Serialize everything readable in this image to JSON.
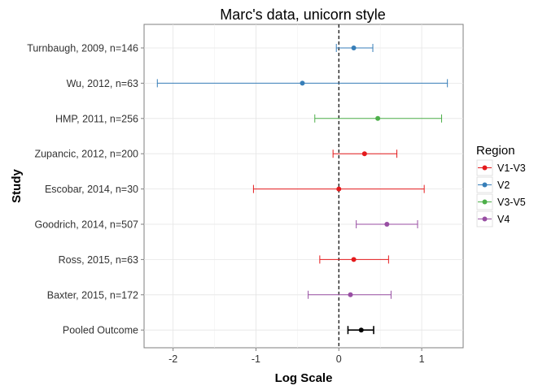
{
  "chart_data": {
    "type": "forest",
    "title": "Marc's data, unicorn style",
    "xlabel": "Log Scale",
    "ylabel": "Study",
    "xlim": [
      -2.35,
      1.5
    ],
    "x_ticks": [
      -2,
      -1,
      0,
      1
    ],
    "x_tick_labels": [
      "-2",
      "-1",
      "0",
      "1"
    ],
    "reference_line": 0,
    "grid": true,
    "legend": {
      "title": "Region",
      "position": "right",
      "entries": [
        {
          "label": "V1-V3",
          "color": "#e41a1c"
        },
        {
          "label": "V2",
          "color": "#377eb8"
        },
        {
          "label": "V3-V5",
          "color": "#4daf4a"
        },
        {
          "label": "V4",
          "color": "#984ea3"
        }
      ]
    },
    "studies": [
      {
        "label": "Turnbaugh, 2009, n=146",
        "estimate": 0.18,
        "lower": -0.03,
        "upper": 0.41,
        "region": "V2",
        "color": "#377eb8"
      },
      {
        "label": "Wu, 2012, n=63",
        "estimate": -0.44,
        "lower": -2.19,
        "upper": 1.31,
        "region": "V2",
        "color": "#377eb8"
      },
      {
        "label": "HMP, 2011, n=256",
        "estimate": 0.47,
        "lower": -0.29,
        "upper": 1.24,
        "region": "V3-V5",
        "color": "#4daf4a"
      },
      {
        "label": "Zupancic, 2012, n=200",
        "estimate": 0.31,
        "lower": -0.07,
        "upper": 0.7,
        "region": "V1-V3",
        "color": "#e41a1c"
      },
      {
        "label": "Escobar, 2014, n=30",
        "estimate": 0.0,
        "lower": -1.03,
        "upper": 1.03,
        "region": "V1-V3",
        "color": "#e41a1c"
      },
      {
        "label": "Goodrich, 2014, n=507",
        "estimate": 0.58,
        "lower": 0.21,
        "upper": 0.95,
        "region": "V4",
        "color": "#984ea3"
      },
      {
        "label": "Ross, 2015, n=63",
        "estimate": 0.18,
        "lower": -0.23,
        "upper": 0.6,
        "region": "V1-V3",
        "color": "#e41a1c"
      },
      {
        "label": "Baxter, 2015, n=172",
        "estimate": 0.14,
        "lower": -0.37,
        "upper": 0.63,
        "region": "V4",
        "color": "#984ea3"
      },
      {
        "label": "Pooled Outcome",
        "estimate": 0.27,
        "lower": 0.11,
        "upper": 0.42,
        "region": "",
        "color": "#000000"
      }
    ]
  }
}
